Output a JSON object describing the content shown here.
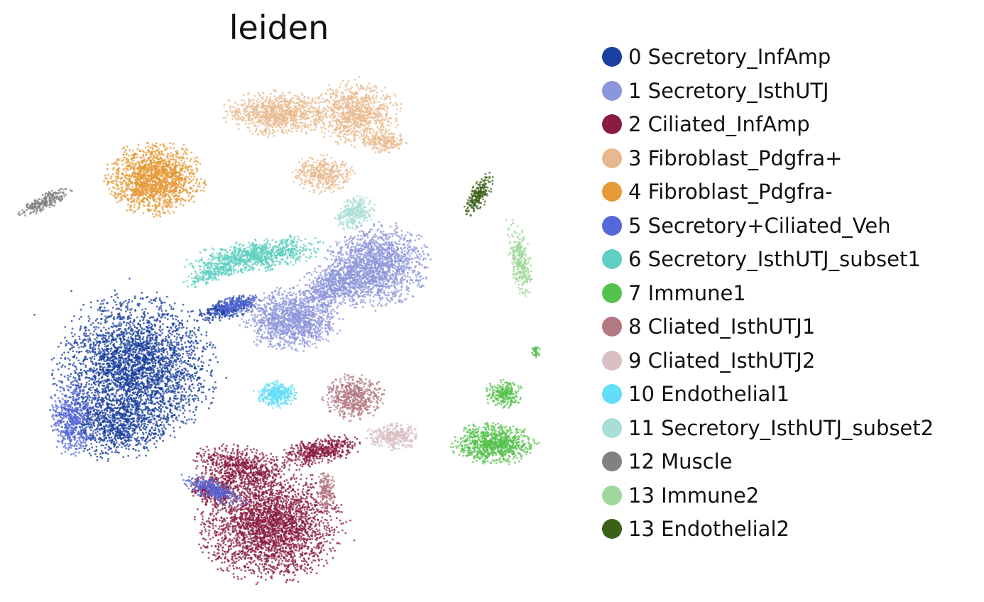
{
  "chart_data": {
    "type": "scatter",
    "title": "leiden",
    "xlabel": "",
    "ylabel": "",
    "grid": false,
    "axes_visible": false,
    "legend_position": "right",
    "series": [
      {
        "name": "0 Secretory_InfAmp",
        "color": "#1a3f9e"
      },
      {
        "name": "1 Secretory_IsthUTJ",
        "color": "#8c96da"
      },
      {
        "name": "2 Ciliated_InfAmp",
        "color": "#891c42"
      },
      {
        "name": "3 Fibroblast_Pdgfra+",
        "color": "#e8b98e"
      },
      {
        "name": "4 Fibroblast_Pdgfra-",
        "color": "#e59a35"
      },
      {
        "name": "5 Secretory+Ciliated_Veh",
        "color": "#5468d8"
      },
      {
        "name": "6 Secretory_IsthUTJ_subset1",
        "color": "#5ecfc0"
      },
      {
        "name": "7 Immune1",
        "color": "#55c24d"
      },
      {
        "name": "8 Cliated_IsthUTJ1",
        "color": "#b37982"
      },
      {
        "name": "9 Cliated_IsthUTJ2",
        "color": "#d8bfc4"
      },
      {
        "name": "10 Endothelial1",
        "color": "#63def7"
      },
      {
        "name": "11 Secretory_IsthUTJ_subset2",
        "color": "#a8ded6"
      },
      {
        "name": "12 Muscle",
        "color": "#818181"
      },
      {
        "name": "13 Immune2",
        "color": "#9fd79a"
      },
      {
        "name": "13 Endothelial2",
        "color": "#3b6118"
      }
    ]
  }
}
